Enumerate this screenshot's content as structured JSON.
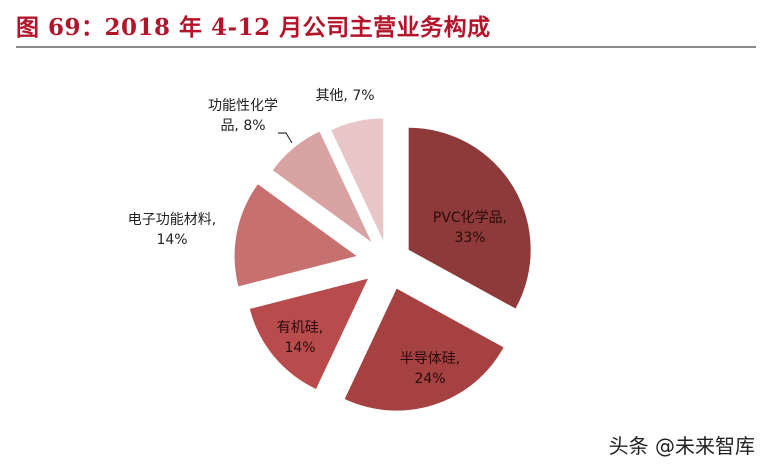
{
  "title": "图  69：2018 年 4-12 月公司主营业务构成",
  "watermark": "头条 @未来智库",
  "chart_data": {
    "type": "pie",
    "title": "2018 年 4-12 月公司主营业务构成",
    "figure_number": "图 69",
    "exploded": true,
    "start_angle": "12 o'clock, clockwise",
    "categories": [
      "PVC化学品",
      "半导体硅",
      "有机硅",
      "电子功能材料",
      "功能性化学品",
      "其他"
    ],
    "values": [
      33,
      24,
      14,
      14,
      8,
      7
    ],
    "unit": "%",
    "colors": [
      "#8e3a3a",
      "#a54141",
      "#b84b4b",
      "#c67070",
      "#d9a3a3",
      "#e8c6c8"
    ],
    "labels": [
      {
        "line1": "PVC化学品,",
        "line2": "33%"
      },
      {
        "line1": "半导体硅,",
        "line2": "24%"
      },
      {
        "line1": "有机硅,",
        "line2": "14%"
      },
      {
        "line1": "电子功能材料,",
        "line2": "14%"
      },
      {
        "line1": "功能性化学",
        "line2": "品, 8%"
      },
      {
        "line1": "其他, 7%",
        "line2": ""
      }
    ]
  }
}
